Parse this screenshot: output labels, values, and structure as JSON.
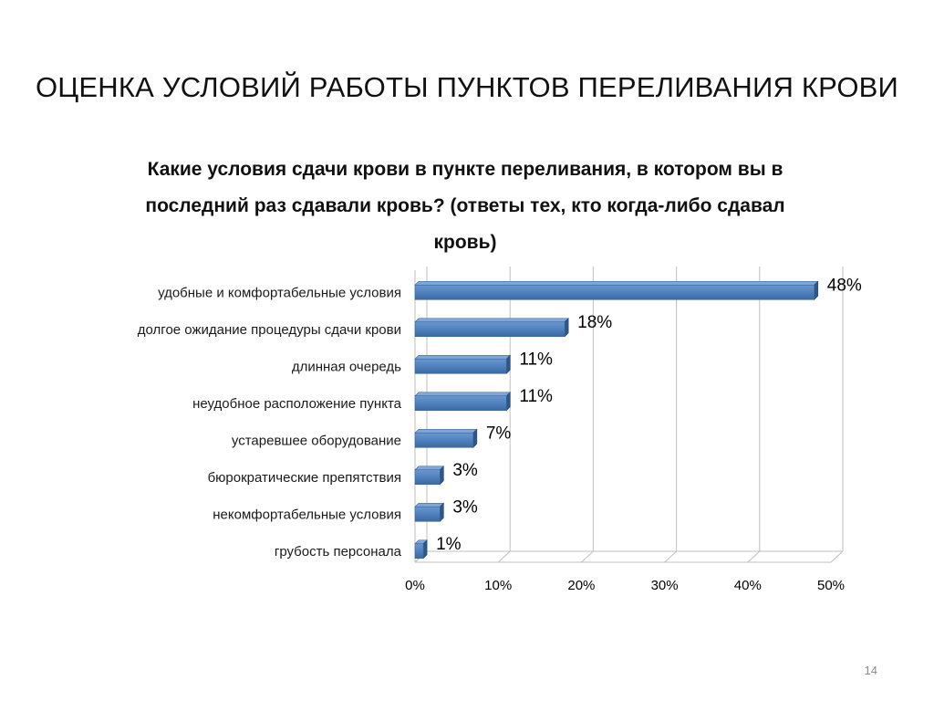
{
  "slide": {
    "title": "ОЦЕНКА УСЛОВИЙ РАБОТЫ ПУНКТОВ ПЕРЕЛИВАНИЯ КРОВИ",
    "page_number": "14"
  },
  "chart_data": {
    "type": "bar",
    "orientation": "horizontal",
    "style": "3d",
    "title": "Какие условия сдачи крови в пункте переливания, в котором вы в последний раз сдавали кровь? (ответы тех, кто когда-либо сдавал кровь)",
    "categories": [
      "удобные и комфортабельные условия",
      "долгое ожидание процедуры сдачи крови",
      "длинная очередь",
      "неудобное расположение пункта",
      "устаревшее оборудование",
      "бюрократические препятствия",
      "некомфортабельные условия",
      "грубость персонала"
    ],
    "values": [
      48,
      18,
      11,
      11,
      7,
      3,
      3,
      1
    ],
    "data_labels": [
      "48%",
      "18%",
      "11%",
      "11%",
      "7%",
      "3%",
      "3%",
      "1%"
    ],
    "x_ticks": [
      "0%",
      "10%",
      "20%",
      "30%",
      "40%",
      "50%"
    ],
    "xlim": [
      0,
      50
    ],
    "grid": true,
    "legend": "none",
    "bar_color": "#4f81bd"
  }
}
